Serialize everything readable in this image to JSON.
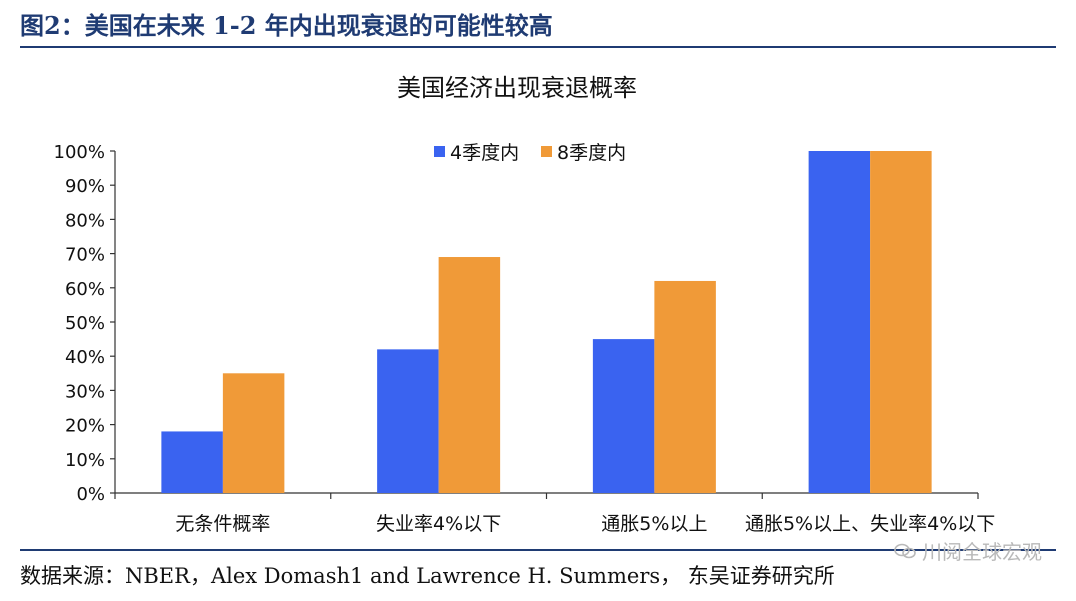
{
  "figure_caption": "图2：美国在未来 1-2 年内出现衰退的可能性较高",
  "source": "数据来源：NBER，Alex Domash1 and Lawrence H. Summers， 东吴证券研究所",
  "watermark": "川阅全球宏观",
  "colors": {
    "series_1": "#3a63f0",
    "series_2": "#f09a38",
    "accent": "#1f3b73"
  },
  "chart_data": {
    "type": "bar",
    "title": "美国经济出现衰退概率",
    "categories": [
      "无条件概率",
      "失业率4%以下",
      "通胀5%以上",
      "通胀5%以上、失业率4%以下"
    ],
    "series": [
      {
        "name": "4季度内",
        "values": [
          18,
          42,
          45,
          100
        ]
      },
      {
        "name": "8季度内",
        "values": [
          35,
          69,
          62,
          100
        ]
      }
    ],
    "ylim": [
      0,
      100
    ],
    "yticks": [
      "0%",
      "10%",
      "20%",
      "30%",
      "40%",
      "50%",
      "60%",
      "70%",
      "80%",
      "90%",
      "100%"
    ],
    "xlabel": "",
    "ylabel": "",
    "grid": false,
    "legend_position": "top-center"
  }
}
